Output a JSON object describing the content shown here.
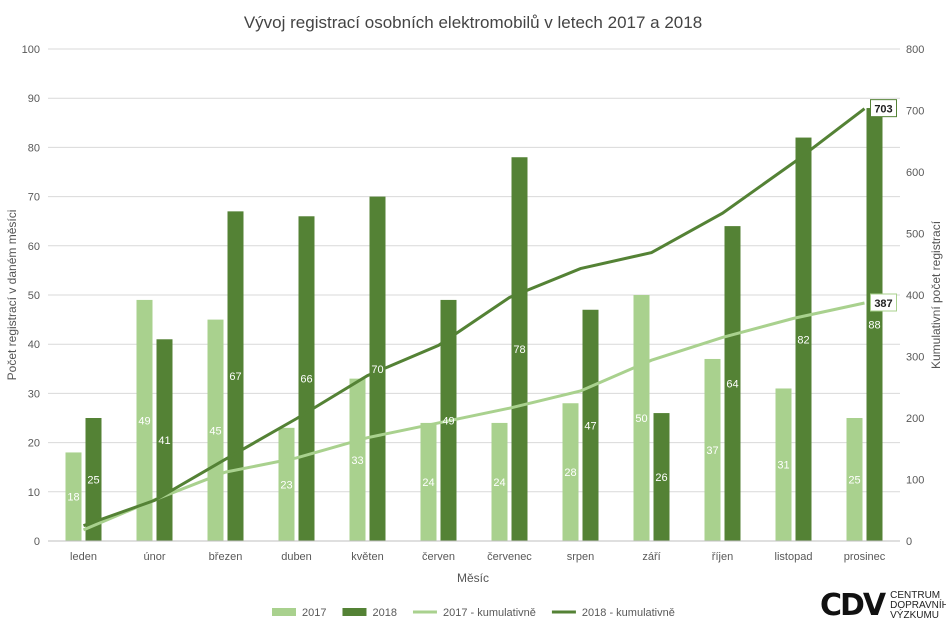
{
  "chart_data": {
    "type": "bar",
    "title": "Vývoj registrací osobních elektromobilů v letech 2017 a 2018",
    "xlabel": "Měsíc",
    "ylabel": "Počet registrací v daném měsíci",
    "y2label": "Kumulativní počet registrací",
    "ylim": [
      0,
      100
    ],
    "y2lim": [
      0,
      800
    ],
    "yticks": [
      0,
      10,
      20,
      30,
      40,
      50,
      60,
      70,
      80,
      90,
      100
    ],
    "y2ticks": [
      0,
      100,
      200,
      300,
      400,
      500,
      600,
      700,
      800
    ],
    "grid": true,
    "legend_placement": "bottom",
    "categories": [
      "leden",
      "únor",
      "březen",
      "duben",
      "květen",
      "červen",
      "červenec",
      "srpen",
      "září",
      "říjen",
      "listopad",
      "prosinec"
    ],
    "series": [
      {
        "name": "2017",
        "type": "bar",
        "axis": "left",
        "color": "#a9d18e",
        "values": [
          18,
          49,
          45,
          23,
          33,
          24,
          24,
          28,
          50,
          37,
          31,
          25
        ]
      },
      {
        "name": "2018",
        "type": "bar",
        "axis": "left",
        "color": "#548235",
        "values": [
          25,
          41,
          67,
          66,
          70,
          49,
          78,
          47,
          26,
          64,
          82,
          88
        ]
      },
      {
        "name": "2017 - kumulativně",
        "type": "line",
        "axis": "right",
        "color": "#a9d18e",
        "values": [
          18,
          67,
          112,
          135,
          168,
          192,
          216,
          244,
          294,
          331,
          362,
          387
        ],
        "end_label": "387"
      },
      {
        "name": "2018 - kumulativně",
        "type": "line",
        "axis": "right",
        "color": "#548235",
        "values": [
          25,
          66,
          133,
          199,
          269,
          318,
          396,
          443,
          469,
          533,
          615,
          703
        ],
        "end_label": "703"
      }
    ]
  },
  "logo": {
    "mark": "CDV",
    "lines": [
      "CENTRUM",
      "DOPRAVNÍHO",
      "VÝZKUMU"
    ]
  }
}
